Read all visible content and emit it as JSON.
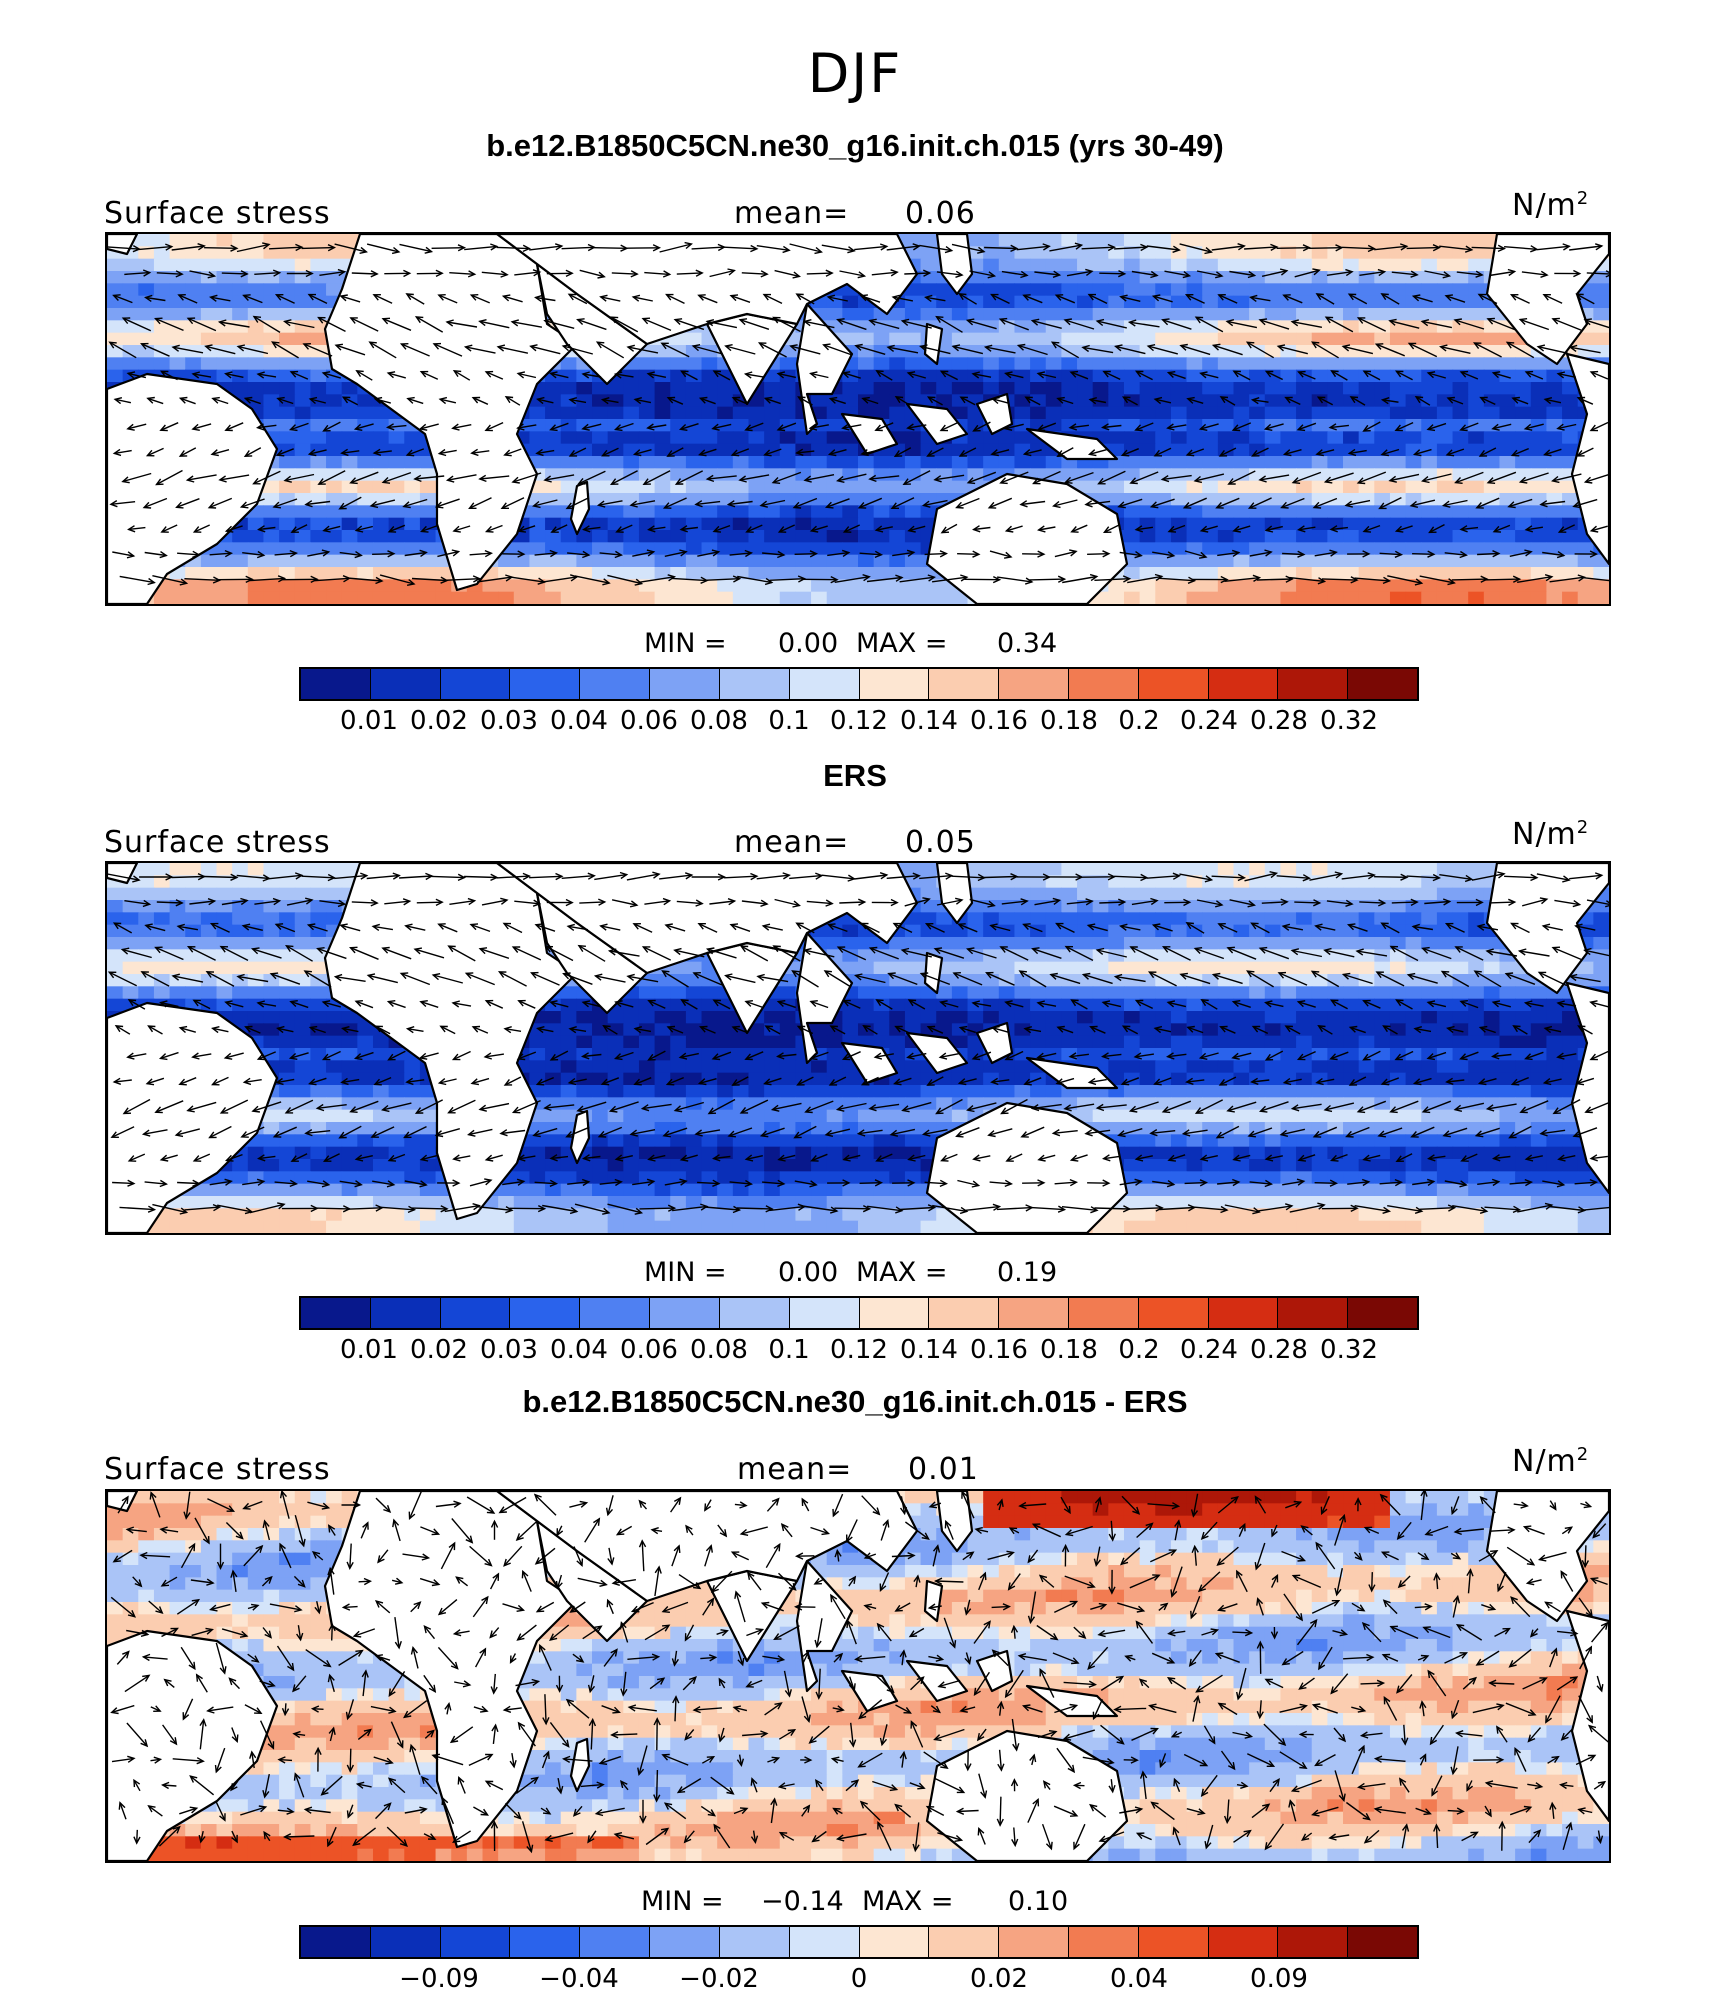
{
  "figure": {
    "title": "DJF",
    "colors": {
      "land": "#ffffff",
      "coast": "#000000"
    }
  },
  "panels": [
    {
      "title": "b.e12.B1850C5CN.ne30_g16.init.ch.015 (yrs 30-49)",
      "left_label": "Surface stress",
      "mean_label": "mean=",
      "mean_value": "0.06",
      "units": "N/m",
      "units_sup": "2",
      "min_label": "MIN =",
      "min_value": "0.00",
      "max_label": "MAX =",
      "max_value": "0.34",
      "colorbar_colors": [
        "#08188c",
        "#0a2fb8",
        "#1446d6",
        "#2a63ec",
        "#4f80f2",
        "#7da2f5",
        "#aac4f7",
        "#d4e4fa",
        "#fde6d2",
        "#fbcdb0",
        "#f6a482",
        "#f27b51",
        "#ec5326",
        "#d52d12",
        "#ad1708",
        "#7a0804"
      ],
      "colorbar_ticks": [
        "0.01",
        "0.02",
        "0.03",
        "0.04",
        "0.06",
        "0.08",
        "0.1",
        "0.12",
        "0.14",
        "0.16",
        "0.18",
        "0.2",
        "0.24",
        "0.28",
        "0.32"
      ],
      "map": {
        "field": "magnitude",
        "seed": 11,
        "ocean_mask": "model"
      }
    },
    {
      "title": "ERS",
      "left_label": "Surface stress",
      "mean_label": "mean=",
      "mean_value": "0.05",
      "units": "N/m",
      "units_sup": "2",
      "min_label": "MIN =",
      "min_value": "0.00",
      "max_label": "MAX =",
      "max_value": "0.19",
      "colorbar_colors": [
        "#08188c",
        "#0a2fb8",
        "#1446d6",
        "#2a63ec",
        "#4f80f2",
        "#7da2f5",
        "#aac4f7",
        "#d4e4fa",
        "#fde6d2",
        "#fbcdb0",
        "#f6a482",
        "#f27b51",
        "#ec5326",
        "#d52d12",
        "#ad1708",
        "#7a0804"
      ],
      "colorbar_ticks": [
        "0.01",
        "0.02",
        "0.03",
        "0.04",
        "0.06",
        "0.08",
        "0.1",
        "0.12",
        "0.14",
        "0.16",
        "0.18",
        "0.2",
        "0.24",
        "0.28",
        "0.32"
      ],
      "map": {
        "field": "magnitude_obs",
        "seed": 23,
        "ocean_mask": "obs"
      }
    },
    {
      "title": "b.e12.B1850C5CN.ne30_g16.init.ch.015 - ERS",
      "left_label": "Surface stress",
      "mean_label": "mean=",
      "mean_value": "0.01",
      "units": "N/m",
      "units_sup": "2",
      "min_label": "MIN =",
      "min_value": "−0.14",
      "max_label": "MAX =",
      "max_value": "0.10",
      "colorbar_colors": [
        "#08188c",
        "#0a2fb8",
        "#1446d6",
        "#2a63ec",
        "#4f80f2",
        "#7da2f5",
        "#aac4f7",
        "#d4e4fa",
        "#fde6d2",
        "#fbcdb0",
        "#f6a482",
        "#f27b51",
        "#ec5326",
        "#d52d12",
        "#ad1708",
        "#7a0804"
      ],
      "colorbar_ticks": [
        "−0.09",
        "−0.04",
        "−0.02",
        "0",
        "0.02",
        "0.04",
        "0.09"
      ],
      "map": {
        "field": "difference",
        "seed": 37,
        "ocean_mask": "obs"
      }
    }
  ]
}
